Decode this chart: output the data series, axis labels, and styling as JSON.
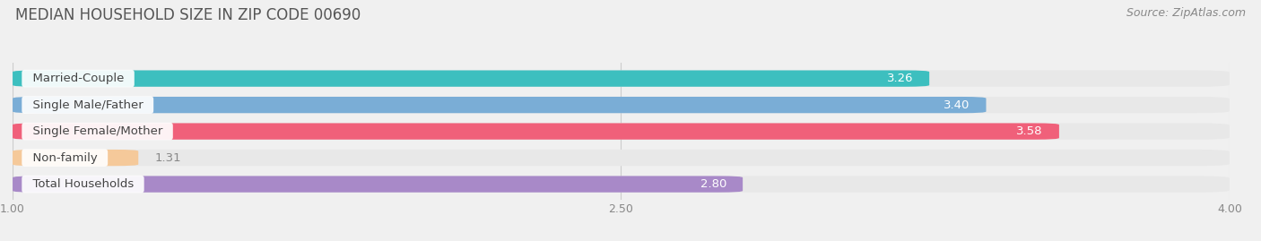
{
  "title": "MEDIAN HOUSEHOLD SIZE IN ZIP CODE 00690",
  "source": "Source: ZipAtlas.com",
  "categories": [
    "Married-Couple",
    "Single Male/Father",
    "Single Female/Mother",
    "Non-family",
    "Total Households"
  ],
  "values": [
    3.26,
    3.4,
    3.58,
    1.31,
    2.8
  ],
  "bar_colors": [
    "#3dbfbf",
    "#7aadd6",
    "#f0607a",
    "#f5c99a",
    "#a889c8"
  ],
  "value_label_colors": [
    "#ffffff",
    "#ffffff",
    "#ffffff",
    "#888888",
    "#ffffff"
  ],
  "xlim": [
    1.0,
    4.0
  ],
  "xticks": [
    1.0,
    2.5,
    4.0
  ],
  "xtick_labels": [
    "1.00",
    "2.50",
    "4.00"
  ],
  "background_color": "#f0f0f0",
  "bar_bg_color": "#e8e8e8",
  "title_fontsize": 12,
  "source_fontsize": 9,
  "bar_height": 0.62,
  "value_fontsize": 9.5,
  "cat_fontsize": 9.5
}
